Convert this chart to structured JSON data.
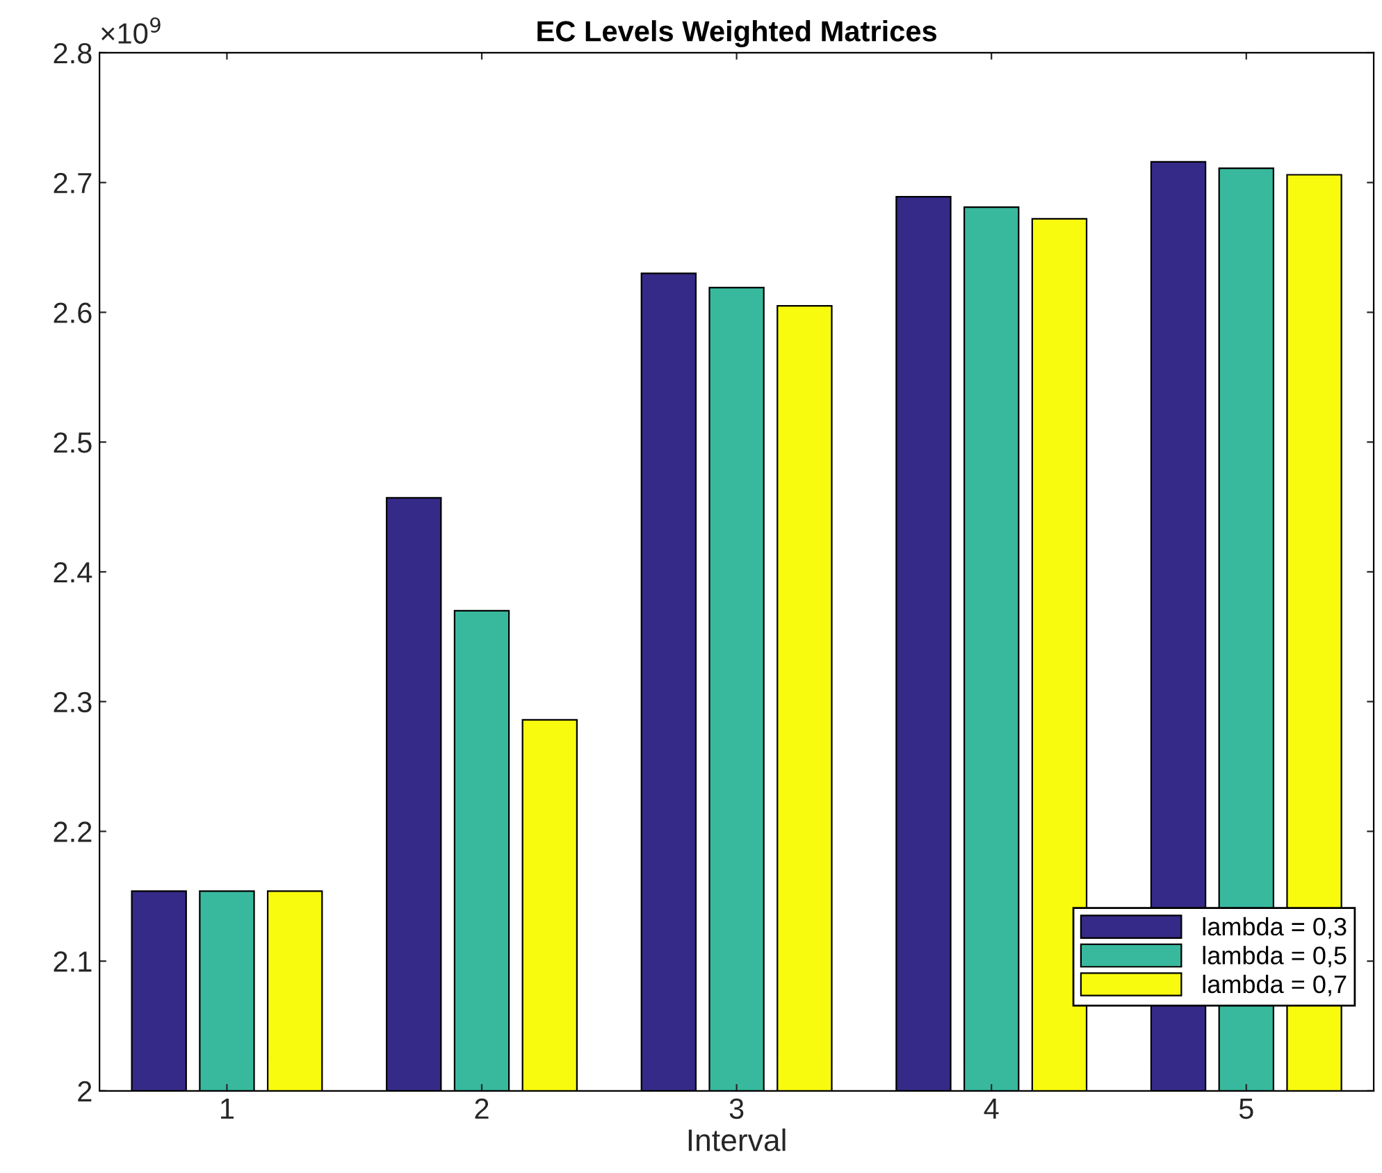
{
  "chart_data": {
    "type": "bar",
    "title": "EC Levels Weighted Matrices",
    "xlabel": "Interval",
    "categories": [
      "1",
      "2",
      "3",
      "4",
      "5"
    ],
    "series": [
      {
        "name": "lambda = 0,3",
        "color": "#352a87",
        "values": [
          2.154,
          2.457,
          2.63,
          2.689,
          2.716
        ]
      },
      {
        "name": "lambda = 0,5",
        "color": "#38b99e",
        "values": [
          2.154,
          2.37,
          2.619,
          2.681,
          2.711
        ]
      },
      {
        "name": "lambda = 0,7",
        "color": "#f9fb0e",
        "values": [
          2.154,
          2.286,
          2.605,
          2.672,
          2.706
        ]
      }
    ],
    "ylim": [
      2,
      2.8
    ],
    "yticks": [
      2,
      2.1,
      2.2,
      2.3,
      2.4,
      2.5,
      2.6,
      2.7,
      2.8
    ],
    "annotations": [
      "×10$^{9}$"
    ],
    "legend": "bottom right",
    "grid": false
  }
}
